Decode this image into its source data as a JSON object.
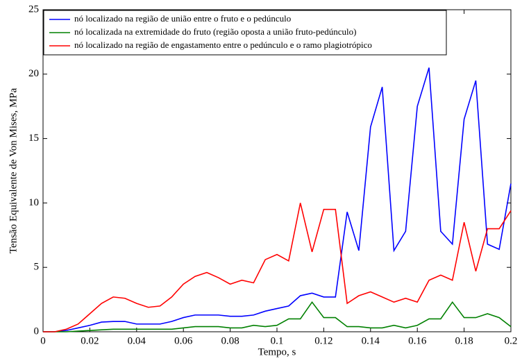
{
  "chart_data": {
    "type": "line",
    "xlabel": "Tempo, s",
    "ylabel": "Tensão Equivalente de Von Mises, MPa",
    "x": [
      0,
      0.005,
      0.01,
      0.015,
      0.02,
      0.025,
      0.03,
      0.035,
      0.04,
      0.045,
      0.05,
      0.055,
      0.06,
      0.065,
      0.07,
      0.075,
      0.08,
      0.085,
      0.09,
      0.095,
      0.1,
      0.105,
      0.11,
      0.115,
      0.12,
      0.125,
      0.13,
      0.135,
      0.14,
      0.145,
      0.15,
      0.155,
      0.16,
      0.165,
      0.17,
      0.175,
      0.18,
      0.185,
      0.19,
      0.195,
      0.2
    ],
    "series": [
      {
        "name": "nó localizado na região de união entre o fruto e o pedúnculo",
        "color": "#0000ff",
        "values": [
          0,
          0,
          0.1,
          0.3,
          0.5,
          0.75,
          0.8,
          0.8,
          0.6,
          0.6,
          0.6,
          0.8,
          1.1,
          1.3,
          1.3,
          1.3,
          1.2,
          1.2,
          1.3,
          1.6,
          1.8,
          2.0,
          2.8,
          3.0,
          2.7,
          2.7,
          9.3,
          6.3,
          15.9,
          19.0,
          6.3,
          7.8,
          17.5,
          20.5,
          7.8,
          6.8,
          16.5,
          19.5,
          6.8,
          6.4,
          11.5
        ]
      },
      {
        "name": "nó localizada na extremidade do fruto (região oposta a união fruto-pedúnculo)",
        "color": "#008000",
        "values": [
          0,
          0,
          0,
          0.05,
          0.1,
          0.15,
          0.2,
          0.2,
          0.2,
          0.2,
          0.2,
          0.2,
          0.3,
          0.4,
          0.4,
          0.4,
          0.3,
          0.3,
          0.5,
          0.4,
          0.5,
          1.0,
          1.0,
          2.3,
          1.1,
          1.1,
          0.4,
          0.4,
          0.3,
          0.3,
          0.5,
          0.3,
          0.5,
          1.0,
          1.0,
          2.3,
          1.1,
          1.1,
          1.4,
          1.1,
          0.4
        ]
      },
      {
        "name": "nó localizado na região de engastamento entre o pedúnculo e o ramo plagiotrópico",
        "color": "#ff0000",
        "values": [
          0,
          0,
          0.2,
          0.6,
          1.4,
          2.2,
          2.7,
          2.6,
          2.2,
          1.9,
          2.0,
          2.7,
          3.7,
          4.3,
          4.6,
          4.2,
          3.7,
          4.0,
          3.8,
          5.6,
          6.0,
          5.5,
          10.0,
          6.2,
          9.5,
          9.5,
          2.2,
          2.8,
          3.1,
          2.7,
          2.3,
          2.6,
          2.3,
          4.0,
          4.4,
          4.0,
          8.5,
          4.7,
          8.0,
          8.0,
          9.4
        ]
      }
    ],
    "xlim": [
      0,
      0.2
    ],
    "xticks": [
      0,
      0.02,
      0.04,
      0.06,
      0.08,
      0.1,
      0.12,
      0.14,
      0.16,
      0.18,
      0.2
    ],
    "ylim": [
      0,
      25
    ],
    "yticks": [
      0,
      5,
      10,
      15,
      20,
      25
    ],
    "legend": "upper left",
    "grid": false
  }
}
